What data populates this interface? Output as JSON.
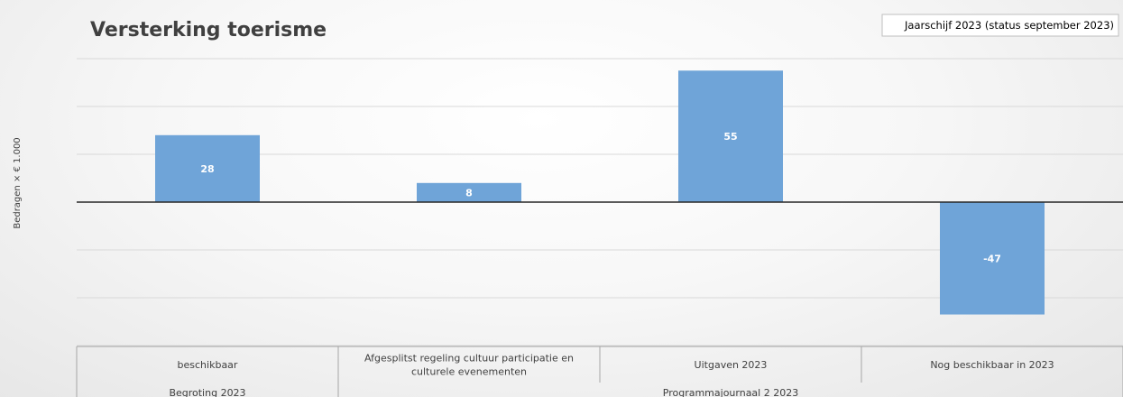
{
  "chart_data": {
    "type": "bar",
    "title": "Versterking toerisme",
    "badge": "Jaarschijf 2023 (status september 2023)",
    "ylabel": "Bedragen × € 1.000",
    "categories": [
      [
        "beschikbaar"
      ],
      [
        "Afgesplitst regeling cultuur participatie en",
        "culturele evenementen"
      ],
      [
        "Uitgaven 2023"
      ],
      [
        "Nog beschikbaar in 2023"
      ]
    ],
    "groups": [
      {
        "label": "Begroting 2023",
        "span": [
          0,
          0
        ]
      },
      {
        "label": "Programmajournaal 2 2023",
        "span": [
          1,
          3
        ]
      }
    ],
    "series": [
      {
        "values": [
          28,
          8,
          55,
          -47
        ],
        "color": "#6fa4d8"
      }
    ],
    "data_labels": [
      "28",
      "8",
      "55",
      "-47"
    ],
    "ylim": [
      -60,
      60
    ],
    "gridline_step": 20,
    "grid": true,
    "legend": "none"
  }
}
